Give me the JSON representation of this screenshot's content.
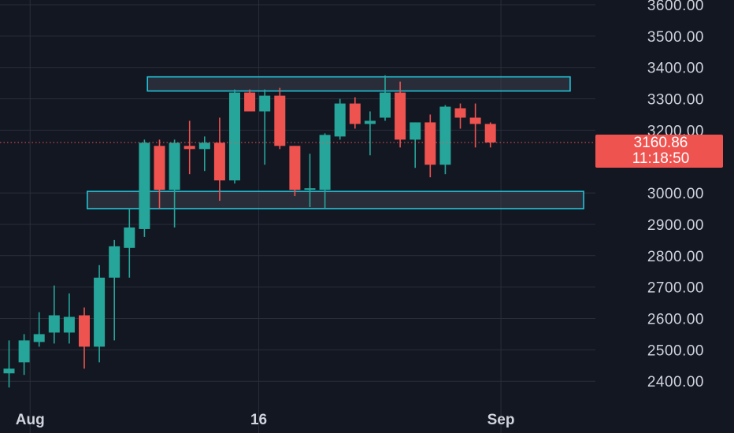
{
  "chart_data": {
    "type": "candlestick",
    "title": "",
    "xlabel": "",
    "ylabel": "",
    "ylim": [
      2350,
      3620
    ],
    "grid": true,
    "colors": {
      "background": "#131722",
      "grid": "#2a2e39",
      "up": "#26a69a",
      "down": "#ef5350",
      "zone_border": "#22c3d8",
      "zone_fill": "#3a3f4c",
      "price_line": "#ef5350",
      "text": "#d1d4dc"
    },
    "y_ticks": [
      {
        "value": 2400,
        "label": "2400.00"
      },
      {
        "value": 2500,
        "label": "2500.00"
      },
      {
        "value": 2600,
        "label": "2600.00"
      },
      {
        "value": 2700,
        "label": "2700.00"
      },
      {
        "value": 2800,
        "label": "2800.00"
      },
      {
        "value": 2900,
        "label": "2900.00"
      },
      {
        "value": 3000,
        "label": "3000.00"
      },
      {
        "value": 3200,
        "label": "3200.00"
      },
      {
        "value": 3300,
        "label": "3300.00"
      },
      {
        "value": 3400,
        "label": "3400.00"
      },
      {
        "value": 3500,
        "label": "3500.00"
      },
      {
        "value": 3600,
        "label": "3600.00"
      }
    ],
    "x_ticks": [
      {
        "index": 1.4,
        "label": "Aug"
      },
      {
        "index": 16.6,
        "label": "16"
      },
      {
        "index": 32.7,
        "label": "Sep"
      }
    ],
    "candles": [
      {
        "o": 2425,
        "h": 2530,
        "l": 2380,
        "c": 2440
      },
      {
        "o": 2460,
        "h": 2550,
        "l": 2420,
        "c": 2530
      },
      {
        "o": 2525,
        "h": 2620,
        "l": 2510,
        "c": 2550
      },
      {
        "o": 2555,
        "h": 2705,
        "l": 2520,
        "c": 2610
      },
      {
        "o": 2555,
        "h": 2680,
        "l": 2520,
        "c": 2605
      },
      {
        "o": 2610,
        "h": 2635,
        "l": 2440,
        "c": 2510
      },
      {
        "o": 2510,
        "h": 2770,
        "l": 2460,
        "c": 2730
      },
      {
        "o": 2730,
        "h": 2850,
        "l": 2530,
        "c": 2830
      },
      {
        "o": 2825,
        "h": 2950,
        "l": 2730,
        "c": 2890
      },
      {
        "o": 2885,
        "h": 3170,
        "l": 2860,
        "c": 3160
      },
      {
        "o": 3150,
        "h": 3170,
        "l": 2950,
        "c": 3010
      },
      {
        "o": 3010,
        "h": 3170,
        "l": 2890,
        "c": 3160
      },
      {
        "o": 3150,
        "h": 3230,
        "l": 3060,
        "c": 3140
      },
      {
        "o": 3140,
        "h": 3180,
        "l": 3070,
        "c": 3160
      },
      {
        "o": 3160,
        "h": 3240,
        "l": 2975,
        "c": 3040
      },
      {
        "o": 3040,
        "h": 3330,
        "l": 3030,
        "c": 3320
      },
      {
        "o": 3320,
        "h": 3330,
        "l": 3260,
        "c": 3260
      },
      {
        "o": 3260,
        "h": 3330,
        "l": 3090,
        "c": 3310
      },
      {
        "o": 3310,
        "h": 3335,
        "l": 3140,
        "c": 3150
      },
      {
        "o": 3150,
        "h": 3150,
        "l": 2990,
        "c": 3010
      },
      {
        "o": 3010,
        "h": 3125,
        "l": 2955,
        "c": 3015
      },
      {
        "o": 3010,
        "h": 3190,
        "l": 2950,
        "c": 3185
      },
      {
        "o": 3180,
        "h": 3300,
        "l": 3170,
        "c": 3285
      },
      {
        "o": 3285,
        "h": 3305,
        "l": 3205,
        "c": 3220
      },
      {
        "o": 3220,
        "h": 3260,
        "l": 3120,
        "c": 3230
      },
      {
        "o": 3240,
        "h": 3375,
        "l": 3230,
        "c": 3320
      },
      {
        "o": 3320,
        "h": 3355,
        "l": 3145,
        "c": 3170
      },
      {
        "o": 3170,
        "h": 3225,
        "l": 3080,
        "c": 3225
      },
      {
        "o": 3225,
        "h": 3250,
        "l": 3050,
        "c": 3090
      },
      {
        "o": 3090,
        "h": 3280,
        "l": 3060,
        "c": 3275
      },
      {
        "o": 3270,
        "h": 3285,
        "l": 3205,
        "c": 3240
      },
      {
        "o": 3240,
        "h": 3285,
        "l": 3145,
        "c": 3220
      },
      {
        "o": 3220,
        "h": 3225,
        "l": 3145,
        "c": 3160.86
      }
    ],
    "zones": [
      {
        "name": "resistance-zone",
        "start_index": 9.2,
        "end_index": 37.3,
        "top": 3370,
        "bottom": 3325
      },
      {
        "name": "support-zone",
        "start_index": 5.2,
        "end_index": 38.2,
        "top": 3005,
        "bottom": 2950
      }
    ],
    "current_price": {
      "value": 3160.86,
      "label": "3160.86",
      "countdown": "11:18:50"
    }
  }
}
